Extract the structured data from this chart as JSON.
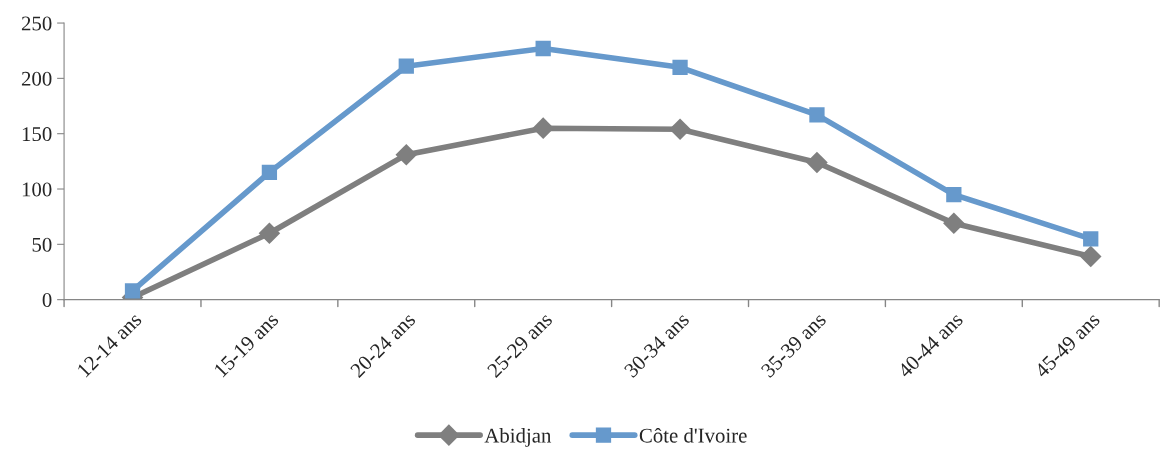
{
  "chart_data": {
    "type": "line",
    "categories": [
      "12-14 ans",
      "15-19 ans",
      "20-24 ans",
      "25-29 ans",
      "30-34 ans",
      "35-39 ans",
      "40-44 ans",
      "45-49 ans"
    ],
    "series": [
      {
        "name": "Abidjan",
        "color": "#7f7f7f",
        "marker": "diamond",
        "values": [
          2,
          60,
          131,
          155,
          154,
          124,
          69,
          39
        ]
      },
      {
        "name": "Côte d'Ivoire",
        "color": "#6699cc",
        "marker": "square",
        "values": [
          8,
          115,
          211,
          227,
          210,
          167,
          95,
          55
        ]
      }
    ],
    "ylim": [
      0,
      250
    ],
    "yticks": [
      0,
      50,
      100,
      150,
      200,
      250
    ],
    "grid": false,
    "legend": "bottom",
    "line_style": "solid"
  }
}
